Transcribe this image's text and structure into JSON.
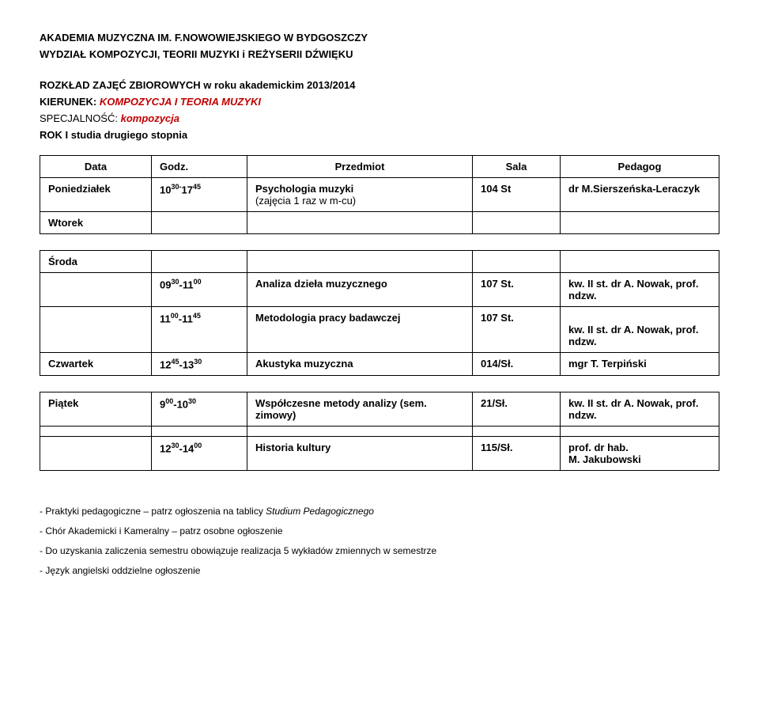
{
  "header": {
    "line1": "AKADEMIA MUZYCZNA IM. F.NOWOWIEJSKIEGO W BYDGOSZCZY",
    "line2": "WYDZIAŁ KOMPOZYCJI, TEORII MUZYKI i REŻYSERII DŹWIĘKU",
    "subtitle": "ROZKŁAD ZAJĘĆ ZBIOROWYCH w roku akademickim 2013/2014",
    "kierunek_label": "KIERUNEK: ",
    "kierunek_value": "KOMPOZYCJA I TEORIA MUZYKI",
    "specjalnosc_label": "SPECJALNOŚĆ: ",
    "specjalnosc_value": "kompozycja",
    "rok": "ROK I studia drugiego stopnia"
  },
  "table_header": {
    "c1": "Data",
    "c2": "Godz.",
    "c3": "Przedmiot",
    "c4": "Sala",
    "c5": "Pedagog"
  },
  "block1": {
    "day1": "Poniedziałek",
    "godz1_html": "10<sup>30-</sup>17<sup>45</sup>",
    "przedmiot1_line1": "Psychologia muzyki",
    "przedmiot1_line2": "(zajęcia 1 raz w m-cu)",
    "sala1": "104 St",
    "pedagog1": "dr M.Sierszeńska-Leraczyk",
    "day2": "Wtorek"
  },
  "block2": {
    "day1": "Środa",
    "godz1_html": "09<sup>30</sup>-11<sup>00</sup>",
    "przedmiot1": "Analiza dzieła muzycznego",
    "sala1": "107 St.",
    "pedagog1": "kw. II st. dr A. Nowak, prof. ndzw.",
    "godz2_html": "11<sup>00</sup>-11<sup>45</sup>",
    "przedmiot2": "Metodologia pracy badawczej",
    "sala2": "107 St.",
    "pedagog2": "kw. II st. dr A. Nowak, prof. ndzw.",
    "day3": "Czwartek",
    "godz3_html": "12<sup>45</sup>-13<sup>30</sup>",
    "przedmiot3": "Akustyka muzyczna",
    "sala3": "014/Sł.",
    "pedagog3": "mgr T. Terpiński"
  },
  "block3": {
    "day1": "Piątek",
    "godz1_html": "9<sup>00</sup>-10<sup>30</sup>",
    "przedmiot1": "Współczesne metody analizy (sem. zimowy)",
    "sala1": "21/Sł.",
    "pedagog1": "kw. II st. dr A. Nowak, prof. ndzw.",
    "godz2_html": "12<sup>30</sup>-14<sup>00</sup>",
    "przedmiot2": "Historia kultury",
    "sala2": "115/Sł.",
    "pedagog2_line1": "prof. dr hab.",
    "pedagog2_line2": "M. Jakubowski"
  },
  "notes": {
    "n1_prefix": "- Praktyki pedagogiczne – patrz ogłoszenia na tablicy ",
    "n1_italic": "Studium Pedagogicznego",
    "n2": "- Chór Akademicki i Kameralny – patrz osobne ogłoszenie",
    "n3": "- Do uzyskania zaliczenia semestru obowiązuje realizacja 5 wykładów zmiennych w semestrze",
    "n4": "- Język angielski oddzielne ogłoszenie"
  }
}
